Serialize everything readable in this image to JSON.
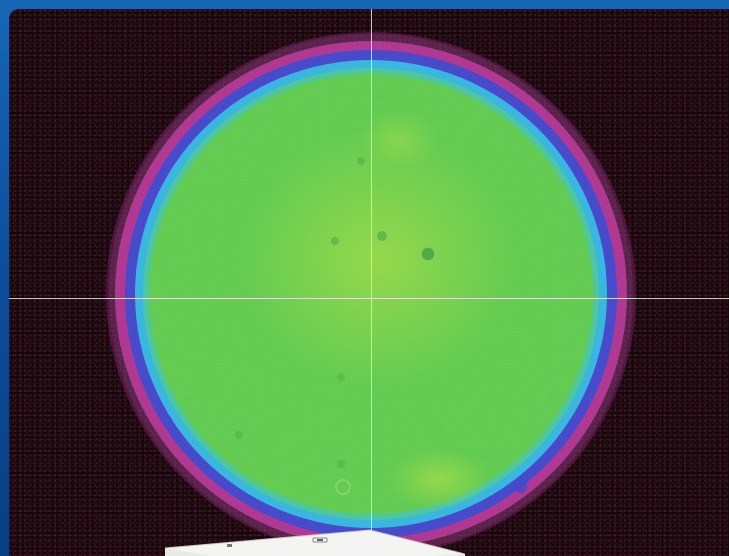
{
  "window": {
    "frame_color": "#0d4f9e"
  },
  "beam_profile": {
    "colormap": [
      "#0d0608",
      "#b02a8c",
      "#3a3fd0",
      "#2ab8e8",
      "#5cd24a",
      "#a8df3a"
    ],
    "crosshair_color": "#ebebdc",
    "icon": "laser-beam-profile"
  },
  "device": {
    "icon": "beam-profiler-sensor-icon"
  }
}
